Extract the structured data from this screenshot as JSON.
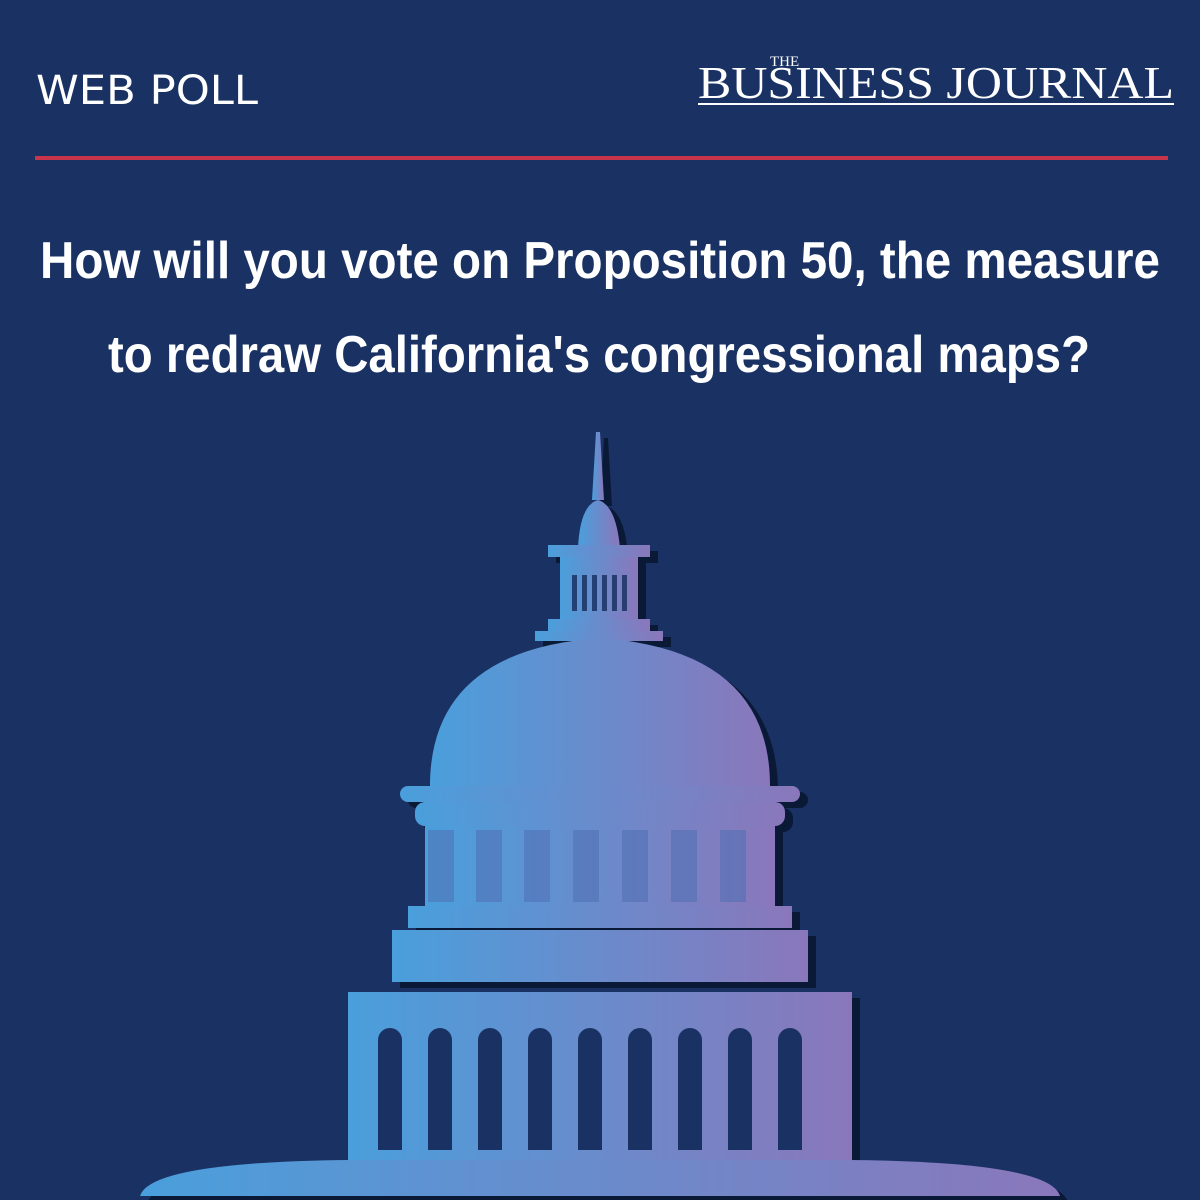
{
  "header": {
    "label": "WEB POLL",
    "logo": {
      "small": "THE",
      "main": "BUSINESS JOURNAL"
    }
  },
  "question": {
    "lines": [
      "How will you vote on Proposition 50, the measure",
      "to redraw California's congressional maps?"
    ]
  }
}
